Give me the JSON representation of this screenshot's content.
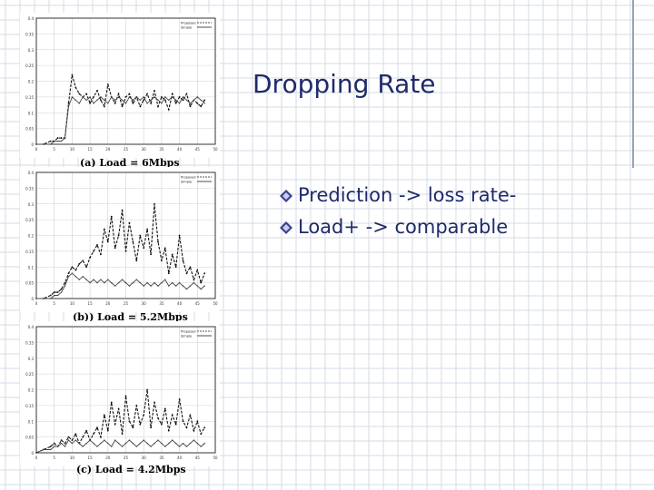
{
  "slide": {
    "title": "Dropping Rate",
    "bullets": [
      "Prediction -> loss rate-",
      "Load+ -> comparable"
    ],
    "colors": {
      "title": "#1f2a6b",
      "bullet_icon": "#3b3f8f",
      "grid": "#d6dbe3"
    }
  },
  "chart_data": [
    {
      "type": "line",
      "title": "(a) Load = 6Mbps",
      "ylim": [
        0,
        0.4
      ],
      "xlim": [
        0,
        50
      ],
      "yticks": [
        "0",
        "0.05",
        "0.1",
        "0.15",
        "0.2",
        "0.25",
        "0.3",
        "0.35",
        "0.4"
      ],
      "xticks": [
        "0",
        "5",
        "10",
        "15",
        "20",
        "25",
        "30",
        "35",
        "40",
        "45",
        "50"
      ],
      "legend": [
        "Proposed",
        "Simple"
      ],
      "series": [
        {
          "name": "Proposed",
          "x": [
            0,
            2,
            4,
            5,
            6,
            7,
            8,
            9,
            10,
            11,
            12,
            13,
            14,
            15,
            16,
            17,
            18,
            19,
            20,
            21,
            22,
            23,
            24,
            25,
            26,
            27,
            28,
            29,
            30,
            31,
            32,
            33,
            34,
            35,
            36,
            37,
            38,
            39,
            40,
            41,
            42,
            43,
            44,
            45,
            46,
            47
          ],
          "values": [
            0,
            0,
            0.01,
            0.01,
            0.02,
            0.02,
            0.02,
            0.13,
            0.22,
            0.18,
            0.16,
            0.15,
            0.16,
            0.13,
            0.15,
            0.17,
            0.14,
            0.12,
            0.19,
            0.15,
            0.13,
            0.16,
            0.12,
            0.15,
            0.16,
            0.13,
            0.15,
            0.12,
            0.14,
            0.16,
            0.13,
            0.17,
            0.12,
            0.15,
            0.14,
            0.11,
            0.16,
            0.13,
            0.15,
            0.14,
            0.16,
            0.12,
            0.14,
            0.13,
            0.12,
            0.14
          ]
        },
        {
          "name": "Simple",
          "x": [
            0,
            2,
            4,
            5,
            6,
            7,
            8,
            9,
            10,
            11,
            12,
            13,
            14,
            15,
            16,
            17,
            18,
            19,
            20,
            21,
            22,
            23,
            24,
            25,
            26,
            27,
            28,
            29,
            30,
            31,
            32,
            33,
            34,
            35,
            36,
            37,
            38,
            39,
            40,
            41,
            42,
            43,
            44,
            45,
            46,
            47
          ],
          "values": [
            0,
            0,
            0,
            0.01,
            0.01,
            0.01,
            0.02,
            0.12,
            0.15,
            0.14,
            0.13,
            0.15,
            0.14,
            0.15,
            0.13,
            0.14,
            0.15,
            0.14,
            0.13,
            0.15,
            0.14,
            0.15,
            0.14,
            0.13,
            0.15,
            0.14,
            0.15,
            0.14,
            0.15,
            0.13,
            0.14,
            0.15,
            0.14,
            0.13,
            0.15,
            0.14,
            0.15,
            0.14,
            0.13,
            0.15,
            0.14,
            0.13,
            0.14,
            0.15,
            0.14,
            0.13
          ]
        }
      ]
    },
    {
      "type": "line",
      "title": "(b)) Load = 5.2Mbps",
      "ylim": [
        0,
        0.4
      ],
      "xlim": [
        0,
        50
      ],
      "yticks": [
        "0",
        "0.05",
        "0.1",
        "0.15",
        "0.2",
        "0.25",
        "0.3",
        "0.35",
        "0.4"
      ],
      "xticks": [
        "0",
        "5",
        "10",
        "15",
        "20",
        "25",
        "30",
        "35",
        "40",
        "45",
        "50"
      ],
      "legend": [
        "Proposed",
        "Simple"
      ],
      "series": [
        {
          "name": "Proposed",
          "x": [
            0,
            2,
            4,
            5,
            6,
            7,
            8,
            9,
            10,
            11,
            12,
            13,
            14,
            15,
            16,
            17,
            18,
            19,
            20,
            21,
            22,
            23,
            24,
            25,
            26,
            27,
            28,
            29,
            30,
            31,
            32,
            33,
            34,
            35,
            36,
            37,
            38,
            39,
            40,
            41,
            42,
            43,
            44,
            45,
            46,
            47
          ],
          "values": [
            0,
            0,
            0.01,
            0.02,
            0.02,
            0.03,
            0.05,
            0.08,
            0.1,
            0.09,
            0.11,
            0.12,
            0.1,
            0.13,
            0.15,
            0.17,
            0.14,
            0.22,
            0.18,
            0.26,
            0.16,
            0.2,
            0.28,
            0.15,
            0.24,
            0.18,
            0.12,
            0.2,
            0.16,
            0.22,
            0.14,
            0.3,
            0.18,
            0.12,
            0.16,
            0.08,
            0.14,
            0.1,
            0.2,
            0.12,
            0.08,
            0.1,
            0.06,
            0.09,
            0.05,
            0.08
          ]
        },
        {
          "name": "Simple",
          "x": [
            0,
            2,
            4,
            5,
            6,
            7,
            8,
            9,
            10,
            11,
            12,
            13,
            14,
            15,
            16,
            17,
            18,
            19,
            20,
            21,
            22,
            23,
            24,
            25,
            26,
            27,
            28,
            29,
            30,
            31,
            32,
            33,
            34,
            35,
            36,
            37,
            38,
            39,
            40,
            41,
            42,
            43,
            44,
            45,
            46,
            47
          ],
          "values": [
            0,
            0,
            0,
            0.01,
            0.01,
            0.02,
            0.04,
            0.07,
            0.08,
            0.07,
            0.06,
            0.07,
            0.06,
            0.05,
            0.06,
            0.05,
            0.06,
            0.05,
            0.06,
            0.05,
            0.04,
            0.05,
            0.06,
            0.05,
            0.04,
            0.05,
            0.06,
            0.05,
            0.04,
            0.05,
            0.04,
            0.05,
            0.04,
            0.05,
            0.06,
            0.04,
            0.05,
            0.04,
            0.05,
            0.04,
            0.03,
            0.04,
            0.05,
            0.04,
            0.03,
            0.04
          ]
        }
      ]
    },
    {
      "type": "line",
      "title": "(c) Load = 4.2Mbps",
      "ylim": [
        0,
        0.4
      ],
      "xlim": [
        0,
        50
      ],
      "yticks": [
        "0",
        "0.05",
        "0.1",
        "0.15",
        "0.2",
        "0.25",
        "0.3",
        "0.35",
        "0.4"
      ],
      "xticks": [
        "0",
        "5",
        "10",
        "15",
        "20",
        "25",
        "30",
        "35",
        "40",
        "45",
        "50"
      ],
      "legend": [
        "Proposed",
        "Simple"
      ],
      "series": [
        {
          "name": "Proposed",
          "x": [
            0,
            2,
            4,
            5,
            6,
            7,
            8,
            9,
            10,
            11,
            12,
            13,
            14,
            15,
            16,
            17,
            18,
            19,
            20,
            21,
            22,
            23,
            24,
            25,
            26,
            27,
            28,
            29,
            30,
            31,
            32,
            33,
            34,
            35,
            36,
            37,
            38,
            39,
            40,
            41,
            42,
            43,
            44,
            45,
            46,
            47
          ],
          "values": [
            0,
            0.01,
            0.02,
            0.03,
            0.02,
            0.04,
            0.03,
            0.05,
            0.04,
            0.06,
            0.03,
            0.05,
            0.07,
            0.04,
            0.06,
            0.08,
            0.05,
            0.12,
            0.07,
            0.16,
            0.09,
            0.14,
            0.06,
            0.18,
            0.1,
            0.08,
            0.15,
            0.09,
            0.12,
            0.2,
            0.08,
            0.16,
            0.11,
            0.09,
            0.14,
            0.07,
            0.12,
            0.09,
            0.17,
            0.1,
            0.08,
            0.12,
            0.07,
            0.1,
            0.06,
            0.08
          ]
        },
        {
          "name": "Simple",
          "x": [
            0,
            2,
            4,
            5,
            6,
            7,
            8,
            9,
            10,
            11,
            12,
            13,
            14,
            15,
            16,
            17,
            18,
            19,
            20,
            21,
            22,
            23,
            24,
            25,
            26,
            27,
            28,
            29,
            30,
            31,
            32,
            33,
            34,
            35,
            36,
            37,
            38,
            39,
            40,
            41,
            42,
            43,
            44,
            45,
            46,
            47
          ],
          "values": [
            0,
            0.01,
            0.01,
            0.02,
            0.02,
            0.03,
            0.02,
            0.04,
            0.03,
            0.04,
            0.03,
            0.02,
            0.03,
            0.04,
            0.03,
            0.02,
            0.03,
            0.04,
            0.03,
            0.02,
            0.04,
            0.03,
            0.02,
            0.03,
            0.04,
            0.03,
            0.02,
            0.03,
            0.04,
            0.03,
            0.02,
            0.03,
            0.04,
            0.03,
            0.02,
            0.03,
            0.04,
            0.03,
            0.02,
            0.03,
            0.02,
            0.03,
            0.04,
            0.03,
            0.02,
            0.03
          ]
        }
      ]
    }
  ]
}
